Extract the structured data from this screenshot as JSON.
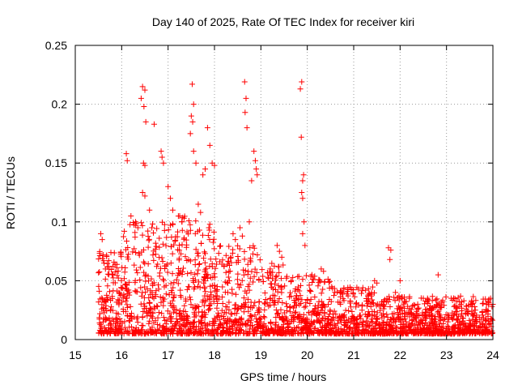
{
  "chart_data": {
    "type": "scatter",
    "title": "Day 140 of 2025, Rate Of TEC Index for receiver kiri",
    "xlabel": "GPS time / hours",
    "ylabel": "ROTI / TECUs",
    "xlim": [
      15,
      24
    ],
    "ylim": [
      0,
      0.25
    ],
    "x_ticks": [
      "15",
      "16",
      "17",
      "18",
      "19",
      "20",
      "21",
      "22",
      "23",
      "24"
    ],
    "y_ticks": [
      "0",
      "0.05",
      "0.1",
      "0.15",
      "0.2",
      "0.25"
    ],
    "grid": true,
    "marker": "+",
    "color": "#ff0000",
    "series": [
      {
        "name": "ROTI",
        "points": [
          [
            16.45,
            0.215
          ],
          [
            16.5,
            0.212
          ],
          [
            16.42,
            0.205
          ],
          [
            16.48,
            0.198
          ],
          [
            16.52,
            0.185
          ],
          [
            16.7,
            0.183
          ],
          [
            16.47,
            0.15
          ],
          [
            16.5,
            0.148
          ],
          [
            16.1,
            0.158
          ],
          [
            16.12,
            0.152
          ],
          [
            16.85,
            0.16
          ],
          [
            16.87,
            0.155
          ],
          [
            16.9,
            0.15
          ],
          [
            16.45,
            0.125
          ],
          [
            16.5,
            0.122
          ],
          [
            17.52,
            0.217
          ],
          [
            17.55,
            0.2
          ],
          [
            17.5,
            0.19
          ],
          [
            17.53,
            0.185
          ],
          [
            17.48,
            0.175
          ],
          [
            17.55,
            0.16
          ],
          [
            17.6,
            0.15
          ],
          [
            17.85,
            0.18
          ],
          [
            17.9,
            0.165
          ],
          [
            17.95,
            0.15
          ],
          [
            18.0,
            0.148
          ],
          [
            17.8,
            0.145
          ],
          [
            17.75,
            0.14
          ],
          [
            18.65,
            0.219
          ],
          [
            18.68,
            0.205
          ],
          [
            18.66,
            0.193
          ],
          [
            18.7,
            0.18
          ],
          [
            18.85,
            0.16
          ],
          [
            18.88,
            0.152
          ],
          [
            18.9,
            0.145
          ],
          [
            18.92,
            0.14
          ],
          [
            18.8,
            0.135
          ],
          [
            19.88,
            0.219
          ],
          [
            19.85,
            0.213
          ],
          [
            19.87,
            0.172
          ],
          [
            19.92,
            0.14
          ],
          [
            19.9,
            0.135
          ],
          [
            19.88,
            0.125
          ],
          [
            19.9,
            0.12
          ],
          [
            19.93,
            0.1
          ],
          [
            19.9,
            0.09
          ],
          [
            19.95,
            0.08
          ],
          [
            21.75,
            0.078
          ],
          [
            21.8,
            0.076
          ],
          [
            21.78,
            0.068
          ],
          [
            22.82,
            0.055
          ],
          [
            22.0,
            0.05
          ],
          [
            15.55,
            0.09
          ],
          [
            15.58,
            0.085
          ],
          [
            15.6,
            0.072
          ],
          [
            15.62,
            0.065
          ],
          [
            15.65,
            0.06
          ],
          [
            16.2,
            0.105
          ],
          [
            16.3,
            0.1
          ],
          [
            16.35,
            0.095
          ],
          [
            16.6,
            0.11
          ],
          [
            16.65,
            0.095
          ],
          [
            17.0,
            0.13
          ],
          [
            17.05,
            0.12
          ],
          [
            17.1,
            0.11
          ],
          [
            17.25,
            0.105
          ],
          [
            17.3,
            0.1
          ],
          [
            17.65,
            0.115
          ],
          [
            17.7,
            0.108
          ],
          [
            17.9,
            0.098
          ],
          [
            18.4,
            0.09
          ],
          [
            18.45,
            0.085
          ],
          [
            18.55,
            0.095
          ],
          [
            18.6,
            0.088
          ],
          [
            18.75,
            0.1
          ],
          [
            19.35,
            0.08
          ],
          [
            19.4,
            0.075
          ],
          [
            19.45,
            0.07
          ],
          [
            20.1,
            0.055
          ],
          [
            20.3,
            0.06
          ],
          [
            20.35,
            0.058
          ],
          [
            21.45,
            0.05
          ],
          [
            21.5,
            0.048
          ],
          [
            21.9,
            0.04
          ],
          [
            22.2,
            0.035
          ],
          [
            22.5,
            0.035
          ],
          [
            23.1,
            0.035
          ],
          [
            23.55,
            0.03
          ],
          [
            23.95,
            0.035
          ],
          [
            24.0,
            0.03
          ]
        ]
      }
    ]
  }
}
